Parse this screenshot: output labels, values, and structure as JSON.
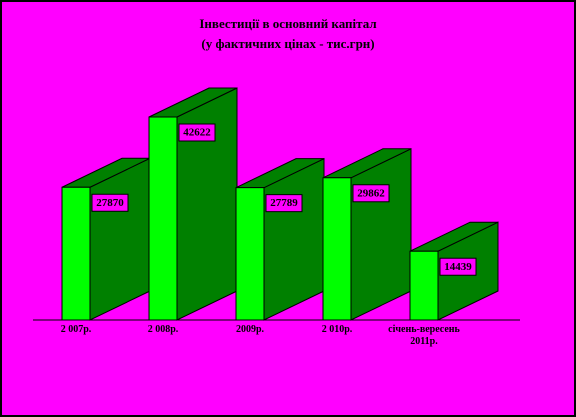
{
  "chart_data": {
    "type": "bar3d",
    "title": "Інвестиції в основний капітал",
    "subtitle": "(у фактичних цінах - тис.грн)",
    "categories": [
      "2 007р.",
      "2 008р.",
      "2009р.",
      "2 010р.",
      "січень-вересень 2011р."
    ],
    "values": [
      27870,
      42622,
      27789,
      29862,
      14439
    ],
    "color": "#00ff00",
    "side_color": "#008000",
    "background": "#ff00ff"
  }
}
